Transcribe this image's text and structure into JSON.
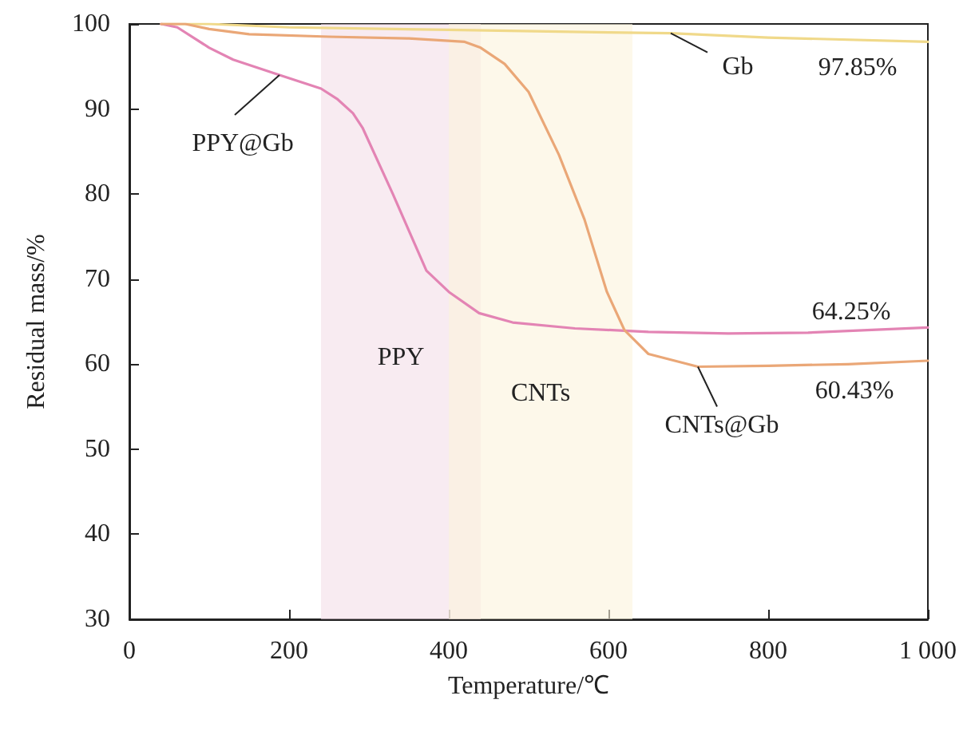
{
  "chart_data": {
    "type": "line",
    "xlabel": "Temperature/℃",
    "ylabel": "Residual mass/%",
    "x": [
      40,
      60,
      100,
      130,
      188,
      240,
      260,
      280,
      292,
      330,
      372,
      400,
      438,
      480,
      558,
      650,
      750,
      850,
      1000
    ],
    "series": [
      {
        "color": "#f0d98a",
        "x": [
          40,
          100,
          200,
          400,
          600,
          678,
          800,
          1000
        ],
        "values": [
          100,
          100,
          99.6,
          99.3,
          99.0,
          98.9,
          98.4,
          97.9
        ]
      },
      {
        "color": "#e384b4",
        "values": [
          100,
          99.6,
          97.2,
          95.8,
          94.0,
          92.4,
          91.2,
          89.5,
          87.8,
          80,
          71,
          68.5,
          66,
          64.9,
          64.2,
          63.8,
          63.6,
          63.7,
          64.3
        ]
      },
      {
        "color": "#eaa777",
        "x": [
          40,
          70,
          100,
          150,
          250,
          350,
          420,
          440,
          470,
          500,
          538,
          570,
          598,
          620,
          650,
          712,
          800,
          900,
          1000
        ],
        "values": [
          100,
          100,
          99.4,
          98.8,
          98.5,
          98.3,
          97.9,
          97.2,
          95.3,
          92,
          84.6,
          77,
          68.5,
          64,
          61.2,
          59.7,
          59.8,
          60.0,
          60.4
        ]
      }
    ],
    "xlim": [
      0,
      1000
    ],
    "ylim": [
      30,
      100
    ],
    "xticks": [
      0,
      200,
      400,
      600,
      800,
      {
        "value": 1000,
        "label": "1 000"
      }
    ],
    "yticks": [
      30,
      40,
      50,
      60,
      70,
      80,
      90,
      100
    ],
    "grid": false,
    "marker": "none",
    "line_style": "solid",
    "bands": [
      {
        "axis": "x",
        "from": 240,
        "to": 440,
        "label": "PPY",
        "color": "#f3dde7"
      },
      {
        "axis": "x",
        "from": 400,
        "to": 630,
        "label": "CNTs",
        "color": "#fbf3dc"
      }
    ],
    "annotations": [
      {
        "text": "PPY@Gb",
        "x": 188,
        "y": 94.0
      },
      {
        "text": "Gb",
        "x": 678,
        "y": 98.9
      },
      {
        "text": "CNTs@Gb",
        "x": 712,
        "y": 59.7
      },
      {
        "text": "97.85%",
        "x": 1000,
        "y": 97.85
      },
      {
        "text": "64.25%",
        "x": 1000,
        "y": 64.25
      },
      {
        "text": "60.43%",
        "x": 1000,
        "y": 60.43
      }
    ]
  }
}
